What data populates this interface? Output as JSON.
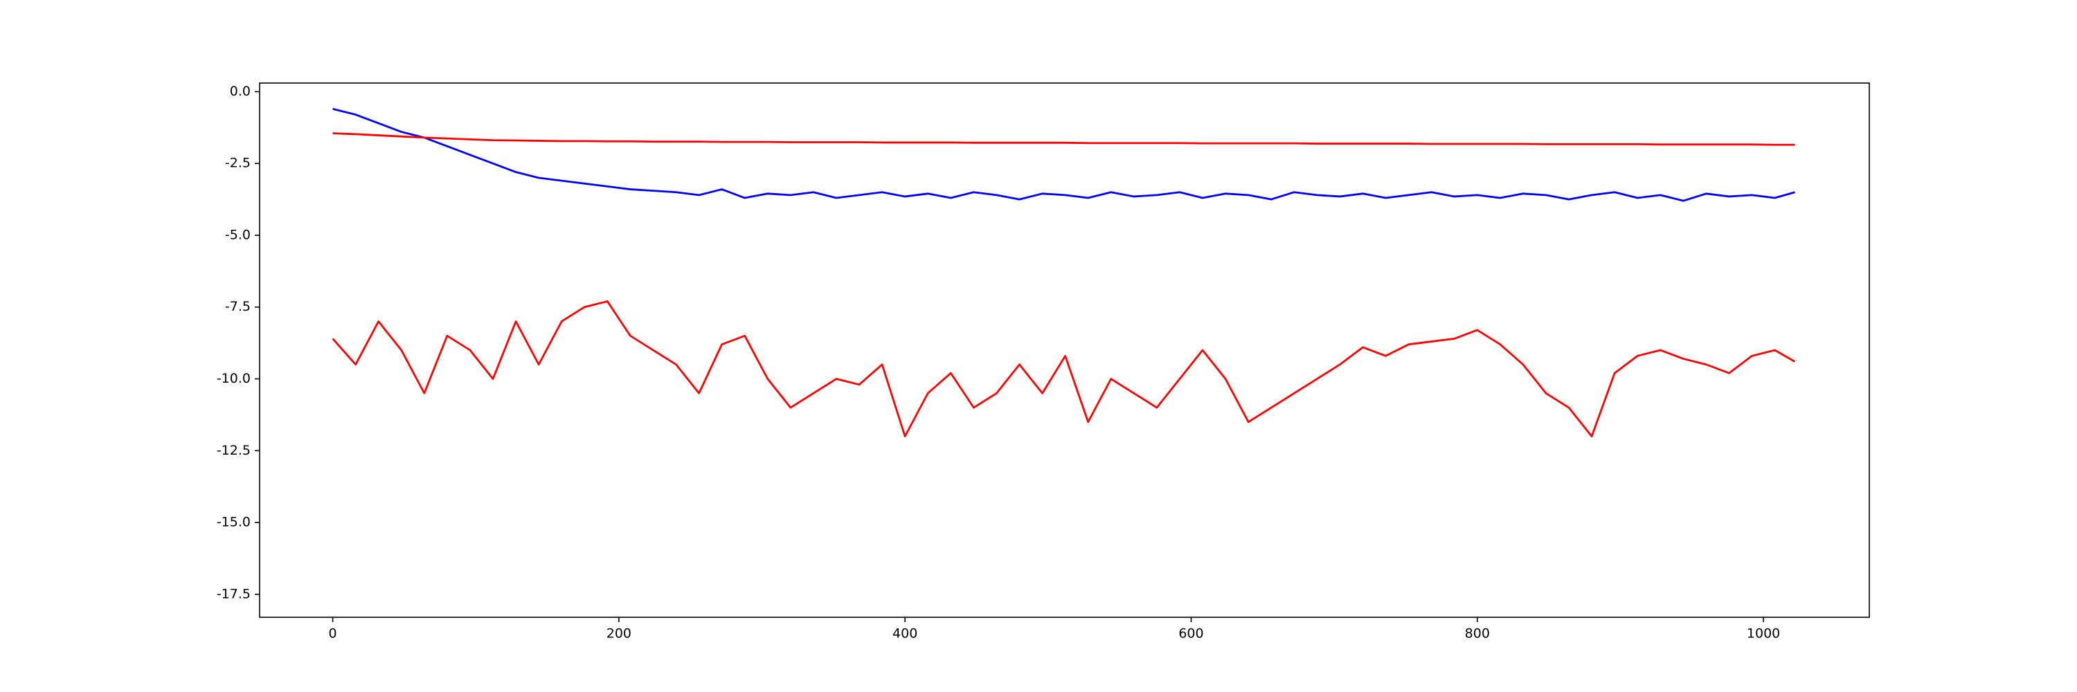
{
  "chart_data": {
    "type": "line",
    "x": [
      0,
      16,
      32,
      48,
      64,
      80,
      96,
      112,
      128,
      144,
      160,
      176,
      192,
      208,
      224,
      240,
      256,
      272,
      288,
      304,
      320,
      336,
      352,
      368,
      384,
      400,
      416,
      432,
      448,
      464,
      480,
      496,
      512,
      528,
      544,
      560,
      576,
      592,
      608,
      624,
      640,
      656,
      672,
      688,
      704,
      720,
      736,
      752,
      768,
      784,
      800,
      816,
      832,
      848,
      864,
      880,
      896,
      912,
      928,
      944,
      960,
      976,
      992,
      1008,
      1022
    ],
    "series": [
      {
        "color": "#0000ff",
        "values": [
          -0.6,
          -0.8,
          -1.1,
          -1.4,
          -1.6,
          -1.9,
          -2.2,
          -2.5,
          -2.8,
          -3.0,
          -3.1,
          -3.2,
          -3.3,
          -3.4,
          -3.45,
          -3.5,
          -3.6,
          -3.4,
          -3.7,
          -3.55,
          -3.6,
          -3.5,
          -3.7,
          -3.6,
          -3.5,
          -3.65,
          -3.55,
          -3.7,
          -3.5,
          -3.6,
          -3.75,
          -3.55,
          -3.6,
          -3.7,
          -3.5,
          -3.65,
          -3.6,
          -3.5,
          -3.7,
          -3.55,
          -3.6,
          -3.75,
          -3.5,
          -3.6,
          -3.65,
          -3.55,
          -3.7,
          -3.6,
          -3.5,
          -3.65,
          -3.6,
          -3.7,
          -3.55,
          -3.6,
          -3.75,
          -3.6,
          -3.5,
          -3.7,
          -3.6,
          -3.8,
          -3.55,
          -3.65,
          -3.6,
          -3.7,
          -3.5
        ]
      },
      {
        "color": "#ff0000",
        "values": [
          -1.45,
          -1.48,
          -1.52,
          -1.56,
          -1.6,
          -1.63,
          -1.66,
          -1.69,
          -1.7,
          -1.71,
          -1.72,
          -1.72,
          -1.73,
          -1.73,
          -1.74,
          -1.74,
          -1.74,
          -1.75,
          -1.75,
          -1.75,
          -1.76,
          -1.76,
          -1.76,
          -1.76,
          -1.77,
          -1.77,
          -1.77,
          -1.77,
          -1.78,
          -1.78,
          -1.78,
          -1.78,
          -1.78,
          -1.79,
          -1.79,
          -1.79,
          -1.79,
          -1.79,
          -1.8,
          -1.8,
          -1.8,
          -1.8,
          -1.8,
          -1.81,
          -1.81,
          -1.81,
          -1.81,
          -1.81,
          -1.82,
          -1.82,
          -1.82,
          -1.82,
          -1.82,
          -1.83,
          -1.83,
          -1.83,
          -1.83,
          -1.83,
          -1.84,
          -1.84,
          -1.84,
          -1.84,
          -1.84,
          -1.85,
          -1.85
        ]
      },
      {
        "color": "#ff0000",
        "values": [
          -8.6,
          -9.5,
          -8.0,
          -9.0,
          -10.5,
          -8.5,
          -9.0,
          -10.0,
          -8.0,
          -9.5,
          -8.0,
          -7.5,
          -7.3,
          -8.5,
          -9.0,
          -9.5,
          -10.5,
          -8.8,
          -8.5,
          -10.0,
          -11.0,
          -10.5,
          -10.0,
          -10.2,
          -9.5,
          -12.0,
          -10.5,
          -9.8,
          -11.0,
          -10.5,
          -9.5,
          -10.5,
          -9.2,
          -11.5,
          -10.0,
          -10.5,
          -11.0,
          -10.0,
          -9.0,
          -10.0,
          -11.5,
          -11.0,
          -10.5,
          -10.0,
          -9.5,
          -8.9,
          -9.2,
          -8.8,
          -8.7,
          -8.6,
          -8.3,
          -8.8,
          -9.5,
          -10.5,
          -11.0,
          -12.0,
          -9.8,
          -9.2,
          -9.0,
          -9.3,
          -9.5,
          -9.8,
          -9.2,
          -9.0,
          -9.4
        ]
      }
    ],
    "xlim": [
      -51.1,
      1074
    ],
    "ylim": [
      -18.3,
      0.3
    ],
    "xticks": [
      0,
      200,
      400,
      600,
      800,
      1000
    ],
    "yticks": [
      {
        "value": 0,
        "label": "0.0"
      },
      -2.5,
      {
        "value": -5,
        "label": "-5.0"
      },
      -7.5,
      {
        "value": -10,
        "label": "-10.0"
      },
      -12.5,
      {
        "value": -15,
        "label": "-15.0"
      },
      -17.5
    ]
  }
}
